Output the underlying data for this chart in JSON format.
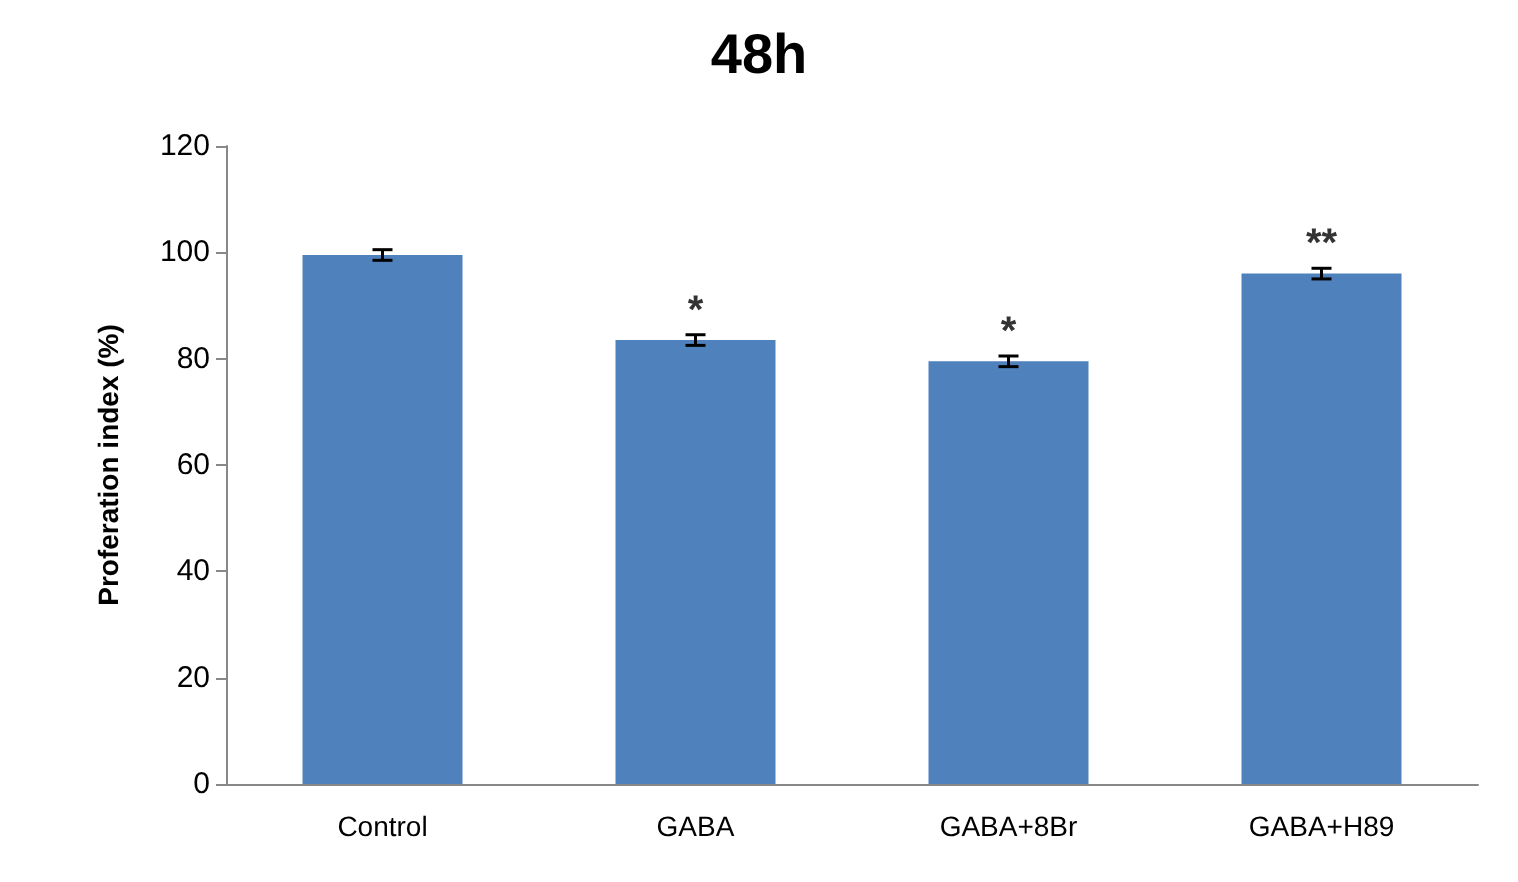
{
  "chart_data": {
    "type": "bar",
    "title": "48h",
    "ylabel": "Proferation index (%)",
    "categories": [
      "Control",
      "GABA",
      "GABA+8Br",
      "GABA+H89"
    ],
    "values": [
      99.5,
      83.5,
      79.5,
      96
    ],
    "errors": [
      1,
      1,
      1,
      1
    ],
    "color": "#4f81bd",
    "ylim": [
      0,
      120
    ],
    "yticks": [
      0,
      20,
      40,
      60,
      80,
      100,
      120
    ],
    "grid": false,
    "annotations": [
      {
        "text": "*",
        "x": "GABA",
        "y": 83.5
      },
      {
        "text": "*",
        "x": "GABA+8Br",
        "y": 79.5
      },
      {
        "text": "**",
        "x": "GABA+H89",
        "y": 96
      }
    ]
  }
}
